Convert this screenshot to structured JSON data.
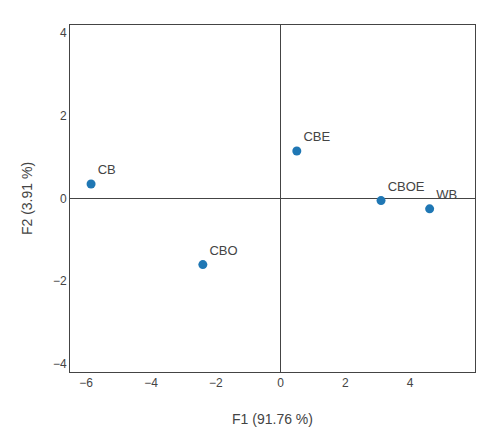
{
  "chart_data": {
    "type": "scatter",
    "x": [
      4.6,
      -5.85,
      -2.4,
      0.5,
      3.1
    ],
    "values": [
      -0.25,
      0.35,
      -1.6,
      1.15,
      -0.05
    ],
    "labels": [
      "WB",
      "CB",
      "CBO",
      "CBE",
      "CBOE"
    ],
    "xlabel": "F1 (91.76 %)",
    "ylabel": "F2 (3.91 %)",
    "xlim": [
      -6.5,
      6.0
    ],
    "ylim": [
      -4.2,
      4.2
    ],
    "xticks": [
      -6,
      -4,
      -2,
      0,
      2,
      4
    ],
    "yticks": [
      -4,
      -2,
      0,
      2,
      4
    ],
    "grid": false
  }
}
